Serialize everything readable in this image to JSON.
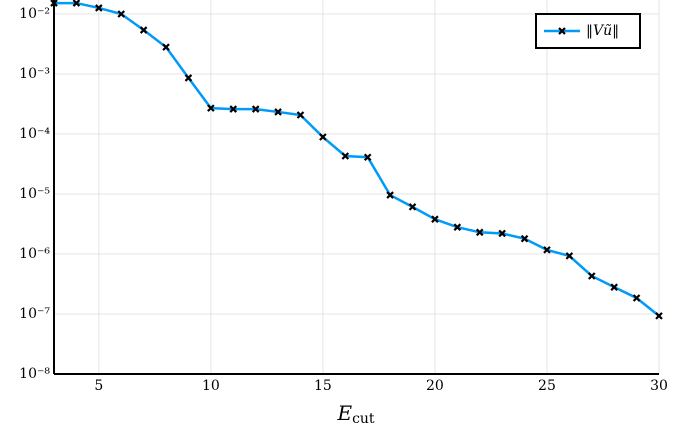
{
  "chart_data": {
    "type": "line",
    "log_y": true,
    "grid": true,
    "legend": "top-right",
    "x_label": {
      "main": "E",
      "sub": "cut"
    },
    "x": [
      3,
      4,
      5,
      6,
      7,
      8,
      9,
      10,
      11,
      12,
      13,
      14,
      15,
      16,
      17,
      18,
      19,
      20,
      21,
      22,
      23,
      24,
      25,
      26,
      27,
      28,
      29,
      30
    ],
    "series": [
      {
        "name": "‖Vũ‖",
        "color": "#009af9",
        "values": [
          0.0152,
          0.0152,
          0.0126,
          0.01,
          0.0054,
          0.0028,
          0.00086,
          0.00027,
          0.00026,
          0.00026,
          0.000233,
          0.000207,
          8.9e-05,
          4.3e-05,
          4.1e-05,
          9.6e-06,
          6.1e-06,
          3.8e-06,
          2.8e-06,
          2.3e-06,
          2.2e-06,
          1.8e-06,
          1.17e-06,
          9.3e-07,
          4.3e-07,
          2.8e-07,
          1.85e-07,
          9.3e-08
        ]
      }
    ],
    "xlim": [
      3,
      30
    ],
    "xticks": [
      5,
      10,
      15,
      20,
      25,
      30
    ],
    "ylim": [
      1e-08,
      0.0171
    ],
    "yticks": [
      {
        "value": 1e-08,
        "label": "10⁻⁸"
      },
      {
        "value": 1e-07,
        "label": "10⁻⁷"
      },
      {
        "value": 1e-06,
        "label": "10⁻⁶"
      },
      {
        "value": 1e-05,
        "label": "10⁻⁵"
      },
      {
        "value": 0.0001,
        "label": "10⁻⁴"
      },
      {
        "value": 0.001,
        "label": "10⁻³"
      },
      {
        "value": 0.01,
        "label": "10⁻²"
      }
    ]
  }
}
